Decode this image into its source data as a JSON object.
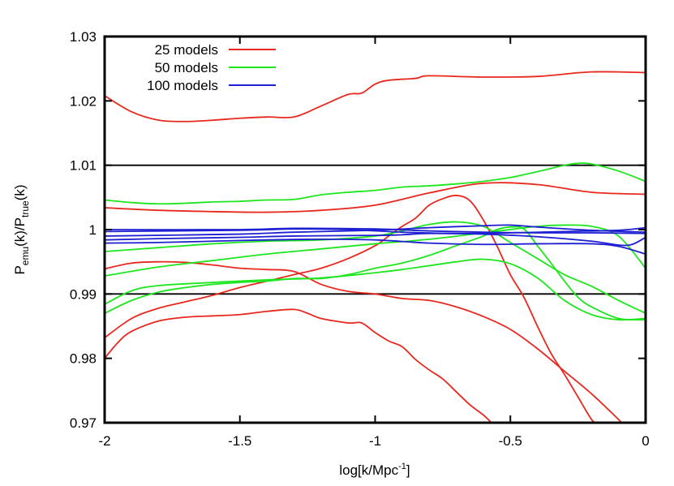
{
  "chart_data": {
    "type": "line",
    "xlabel": {
      "main": "log[k/Mpc",
      "sup": "-1",
      "tail": "]"
    },
    "ylabel": {
      "p1": "P",
      "sub1": "emu",
      "mid": "(k)/P",
      "sub2": "true",
      "tail": "(k)"
    },
    "xlim": [
      -2,
      0
    ],
    "ylim": [
      0.97,
      1.03
    ],
    "x_ticks": [
      {
        "value": -2,
        "label": "-2"
      },
      {
        "value": -1.5,
        "label": "-1.5"
      },
      {
        "value": -1,
        "label": "-1"
      },
      {
        "value": -0.5,
        "label": "-0.5"
      },
      {
        "value": 0,
        "label": "0"
      }
    ],
    "y_ticks": [
      {
        "value": 0.97,
        "label": "0.97"
      },
      {
        "value": 0.98,
        "label": "0.98"
      },
      {
        "value": 0.99,
        "label": "0.99"
      },
      {
        "value": 1.0,
        "label": "1"
      },
      {
        "value": 1.01,
        "label": "1.01"
      },
      {
        "value": 1.02,
        "label": "1.02"
      },
      {
        "value": 1.03,
        "label": "1.03"
      }
    ],
    "reference_lines": [
      0.99,
      1.01
    ],
    "legend_position": "top-left",
    "legend": [
      {
        "label": "25 models",
        "color": "#e8281e"
      },
      {
        "label": "50 models",
        "color": "#1ee61e"
      },
      {
        "label": "100 models",
        "color": "#1e1ed2"
      }
    ],
    "groups": [
      {
        "name": "25 models",
        "color": "#e8281e",
        "curves": [
          [
            [
              -2,
              1.0208
            ],
            [
              -1.9,
              1.0183
            ],
            [
              -1.8,
              1.017
            ],
            [
              -1.7,
              1.0168
            ],
            [
              -1.6,
              1.017
            ],
            [
              -1.5,
              1.0173
            ],
            [
              -1.4,
              1.0175
            ],
            [
              -1.3,
              1.0175
            ],
            [
              -1.2,
              1.0192
            ],
            [
              -1.1,
              1.021
            ],
            [
              -1.05,
              1.0212
            ],
            [
              -1.0,
              1.0226
            ],
            [
              -0.95,
              1.0232
            ],
            [
              -0.85,
              1.0235
            ],
            [
              -0.8,
              1.0239
            ],
            [
              -0.6,
              1.0237
            ],
            [
              -0.4,
              1.0238
            ],
            [
              -0.2,
              1.0245
            ],
            [
              0,
              1.0244
            ]
          ],
          [
            [
              -2,
              1.0034
            ],
            [
              -1.8,
              1.003
            ],
            [
              -1.6,
              1.0028
            ],
            [
              -1.4,
              1.0027
            ],
            [
              -1.2,
              1.003
            ],
            [
              -1.0,
              1.0038
            ],
            [
              -0.8,
              1.0057
            ],
            [
              -0.6,
              1.0072
            ],
            [
              -0.4,
              1.007
            ],
            [
              -0.2,
              1.0058
            ],
            [
              0,
              1.0055
            ]
          ],
          [
            [
              -2,
              0.9939
            ],
            [
              -1.9,
              0.9948
            ],
            [
              -1.8,
              0.995
            ],
            [
              -1.7,
              0.9949
            ],
            [
              -1.6,
              0.9945
            ],
            [
              -1.5,
              0.994
            ],
            [
              -1.4,
              0.9938
            ],
            [
              -1.3,
              0.9935
            ],
            [
              -1.2,
              0.9915
            ],
            [
              -1.1,
              0.9904
            ],
            [
              -1.0,
              0.99
            ],
            [
              -0.9,
              0.9893
            ],
            [
              -0.8,
              0.989
            ],
            [
              -0.7,
              0.988
            ],
            [
              -0.6,
              0.9865
            ],
            [
              -0.5,
              0.9845
            ],
            [
              -0.4,
              0.9815
            ],
            [
              -0.3,
              0.978
            ],
            [
              -0.2,
              0.9745
            ],
            [
              -0.1,
              0.9705
            ],
            [
              -0.09,
              0.97
            ]
          ],
          [
            [
              -2,
              0.9832
            ],
            [
              -1.9,
              0.9862
            ],
            [
              -1.8,
              0.9878
            ],
            [
              -1.7,
              0.9888
            ],
            [
              -1.6,
              0.9898
            ],
            [
              -1.5,
              0.991
            ],
            [
              -1.4,
              0.992
            ],
            [
              -1.3,
              0.993
            ],
            [
              -1.2,
              0.994
            ],
            [
              -1.1,
              0.9955
            ],
            [
              -1.0,
              0.9975
            ],
            [
              -0.95,
              0.999
            ],
            [
              -0.9,
              1.0005
            ],
            [
              -0.85,
              1.0018
            ],
            [
              -0.8,
              1.0038
            ],
            [
              -0.75,
              1.0048
            ],
            [
              -0.7,
              1.0053
            ],
            [
              -0.65,
              1.0045
            ],
            [
              -0.6,
              1.0015
            ],
            [
              -0.55,
              0.9975
            ],
            [
              -0.5,
              0.993
            ],
            [
              -0.45,
              0.9895
            ],
            [
              -0.4,
              0.985
            ],
            [
              -0.35,
              0.9808
            ],
            [
              -0.3,
              0.9775
            ],
            [
              -0.25,
              0.974
            ],
            [
              -0.2,
              0.9705
            ],
            [
              -0.18,
              0.97
            ]
          ],
          [
            [
              -2,
              0.98
            ],
            [
              -1.95,
              0.9825
            ],
            [
              -1.9,
              0.9842
            ],
            [
              -1.8,
              0.9858
            ],
            [
              -1.7,
              0.9864
            ],
            [
              -1.6,
              0.9866
            ],
            [
              -1.5,
              0.9868
            ],
            [
              -1.4,
              0.9873
            ],
            [
              -1.3,
              0.9876
            ],
            [
              -1.25,
              0.987
            ],
            [
              -1.2,
              0.9862
            ],
            [
              -1.1,
              0.9855
            ],
            [
              -1.05,
              0.9855
            ],
            [
              -1.0,
              0.984
            ],
            [
              -0.95,
              0.9827
            ],
            [
              -0.9,
              0.9818
            ],
            [
              -0.85,
              0.9798
            ],
            [
              -0.8,
              0.9782
            ],
            [
              -0.75,
              0.9768
            ],
            [
              -0.7,
              0.9748
            ],
            [
              -0.65,
              0.9728
            ],
            [
              -0.6,
              0.9712
            ],
            [
              -0.57,
              0.97
            ]
          ]
        ]
      },
      {
        "name": "50 models",
        "color": "#1ee61e",
        "curves": [
          [
            [
              -2,
              1.0046
            ],
            [
              -1.9,
              1.0042
            ],
            [
              -1.8,
              1.004
            ],
            [
              -1.7,
              1.0041
            ],
            [
              -1.6,
              1.0043
            ],
            [
              -1.5,
              1.0044
            ],
            [
              -1.4,
              1.0046
            ],
            [
              -1.3,
              1.0047
            ],
            [
              -1.2,
              1.0054
            ],
            [
              -1.1,
              1.0058
            ],
            [
              -1.0,
              1.0061
            ],
            [
              -0.9,
              1.0066
            ],
            [
              -0.8,
              1.0068
            ],
            [
              -0.7,
              1.0071
            ],
            [
              -0.6,
              1.0075
            ],
            [
              -0.5,
              1.0081
            ],
            [
              -0.4,
              1.009
            ],
            [
              -0.3,
              1.01
            ],
            [
              -0.25,
              1.0103
            ],
            [
              -0.2,
              1.0102
            ],
            [
              -0.1,
              1.0091
            ],
            [
              0,
              1.0075
            ]
          ],
          [
            [
              -2,
              0.9966
            ],
            [
              -1.8,
              0.9972
            ],
            [
              -1.6,
              0.9978
            ],
            [
              -1.4,
              0.9982
            ],
            [
              -1.2,
              0.9984
            ],
            [
              -1.0,
              0.999
            ],
            [
              -0.9,
              0.9998
            ],
            [
              -0.8,
              1.0008
            ],
            [
              -0.7,
              1.0012
            ],
            [
              -0.6,
              1.0005
            ],
            [
              -0.5,
              0.998
            ],
            [
              -0.4,
              0.9955
            ],
            [
              -0.3,
              0.993
            ],
            [
              -0.2,
              0.9912
            ],
            [
              -0.1,
              0.989
            ],
            [
              0,
              0.987
            ]
          ],
          [
            [
              -2,
              0.9928
            ],
            [
              -1.8,
              0.9942
            ],
            [
              -1.6,
              0.9952
            ],
            [
              -1.4,
              0.9962
            ],
            [
              -1.2,
              0.997
            ],
            [
              -1.0,
              0.9978
            ],
            [
              -0.8,
              0.9985
            ],
            [
              -0.6,
              0.9995
            ],
            [
              -0.4,
              1.0005
            ],
            [
              -0.3,
              1.0007
            ],
            [
              -0.2,
              1.0005
            ],
            [
              -0.1,
              0.999
            ],
            [
              0,
              0.994
            ]
          ],
          [
            [
              -2,
              0.9884
            ],
            [
              -1.9,
              0.9905
            ],
            [
              -1.8,
              0.9913
            ],
            [
              -1.6,
              0.9918
            ],
            [
              -1.4,
              0.9922
            ],
            [
              -1.2,
              0.9925
            ],
            [
              -1.0,
              0.9933
            ],
            [
              -0.9,
              0.9938
            ],
            [
              -0.8,
              0.9944
            ],
            [
              -0.7,
              0.995
            ],
            [
              -0.6,
              0.9954
            ],
            [
              -0.5,
              0.9947
            ],
            [
              -0.4,
              0.9925
            ],
            [
              -0.3,
              0.989
            ],
            [
              -0.2,
              0.9868
            ],
            [
              -0.1,
              0.986
            ],
            [
              0,
              0.9862
            ]
          ],
          [
            [
              -2,
              0.987
            ],
            [
              -1.9,
              0.989
            ],
            [
              -1.8,
              0.9903
            ],
            [
              -1.7,
              0.991
            ],
            [
              -1.6,
              0.9915
            ],
            [
              -1.5,
              0.9918
            ],
            [
              -1.4,
              0.992
            ],
            [
              -1.3,
              0.9924
            ],
            [
              -1.2,
              0.9924
            ],
            [
              -1.1,
              0.993
            ],
            [
              -1.0,
              0.994
            ],
            [
              -0.9,
              0.9948
            ],
            [
              -0.8,
              0.996
            ],
            [
              -0.7,
              0.9975
            ],
            [
              -0.6,
              0.999
            ],
            [
              -0.55,
              1.0
            ],
            [
              -0.5,
              1.0004
            ],
            [
              -0.45,
              1.0001
            ],
            [
              -0.4,
              0.9975
            ],
            [
              -0.35,
              0.9948
            ],
            [
              -0.3,
              0.992
            ],
            [
              -0.25,
              0.9895
            ],
            [
              -0.2,
              0.988
            ],
            [
              -0.1,
              0.9862
            ],
            [
              0,
              0.986
            ]
          ]
        ]
      },
      {
        "name": "100 models",
        "color": "#1e1ed2",
        "curves": [
          [
            [
              -2,
              1.0
            ],
            [
              -1.5,
              1.0
            ],
            [
              -1.3,
              1.0002
            ],
            [
              -1.0,
              1.0001
            ],
            [
              -0.8,
              0.9998
            ],
            [
              -0.6,
              0.9996
            ],
            [
              -0.4,
              0.9995
            ],
            [
              -0.2,
              0.9995
            ],
            [
              0,
              0.9994
            ]
          ],
          [
            [
              -2,
              0.9997
            ],
            [
              -1.5,
              0.9999
            ],
            [
              -1.3,
              1.0001
            ],
            [
              -1.1,
              1.0
            ],
            [
              -0.9,
              0.9996
            ],
            [
              -0.7,
              0.9994
            ],
            [
              -0.5,
              0.9995
            ],
            [
              -0.3,
              0.9997
            ],
            [
              -0.1,
              0.9999
            ],
            [
              0,
              1.0003
            ]
          ],
          [
            [
              -2,
              0.999
            ],
            [
              -1.5,
              0.9993
            ],
            [
              -1.3,
              0.9996
            ],
            [
              -1.0,
              0.9999
            ],
            [
              -0.8,
              1.0003
            ],
            [
              -0.6,
              1.0006
            ],
            [
              -0.5,
              1.0007
            ],
            [
              -0.4,
              1.0004
            ],
            [
              -0.2,
              0.9999
            ],
            [
              0,
              0.9996
            ]
          ],
          [
            [
              -2,
              0.9984
            ],
            [
              -1.8,
              0.9986
            ],
            [
              -1.5,
              0.9988
            ],
            [
              -1.3,
              0.999
            ],
            [
              -1.0,
              0.9991
            ],
            [
              -0.9,
              0.9992
            ],
            [
              -0.8,
              0.9994
            ],
            [
              -0.6,
              0.9993
            ],
            [
              -0.4,
              0.9989
            ],
            [
              -0.2,
              0.9982
            ],
            [
              -0.1,
              0.9976
            ],
            [
              -0.05,
              0.9977
            ],
            [
              0,
              0.9988
            ]
          ],
          [
            [
              -2,
              0.9979
            ],
            [
              -1.8,
              0.998
            ],
            [
              -1.6,
              0.9982
            ],
            [
              -1.4,
              0.9984
            ],
            [
              -1.2,
              0.9985
            ],
            [
              -1.0,
              0.9984
            ],
            [
              -0.8,
              0.9979
            ],
            [
              -0.6,
              0.9977
            ],
            [
              -0.4,
              0.9978
            ],
            [
              -0.2,
              0.9978
            ],
            [
              -0.1,
              0.9974
            ],
            [
              0,
              0.9962
            ]
          ]
        ]
      }
    ]
  }
}
